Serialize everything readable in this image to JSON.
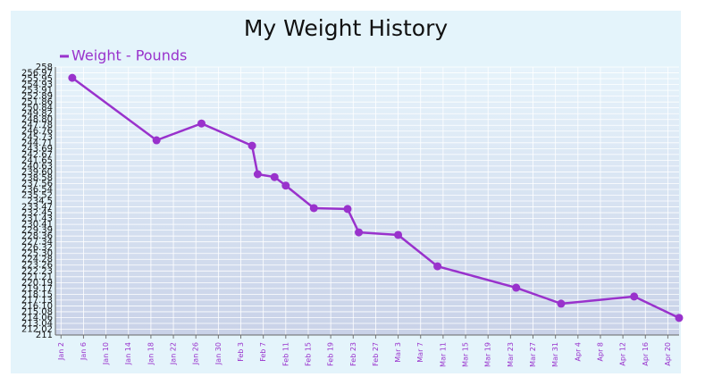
{
  "chart_data": {
    "type": "line",
    "title": "My Weight History",
    "x": [
      "Jan 4",
      "Jan 19",
      "Jan 27",
      "Feb 5",
      "Feb 6",
      "Feb 9",
      "Feb 11",
      "Feb 16",
      "Feb 22",
      "Feb 24",
      "Mar 3",
      "Mar 10",
      "Mar 24",
      "Apr 1",
      "Apr 14",
      "Apr 22"
    ],
    "series": [
      {
        "name": "Weight - Pounds",
        "color": "#9932cc",
        "values": [
          256.1,
          245.15,
          248.1,
          244.2,
          239.2,
          238.7,
          237.2,
          233.25,
          233.1,
          229.0,
          228.55,
          223.05,
          219.3,
          216.5,
          217.75,
          214.0
        ]
      }
    ],
    "xlim": [
      "Jan 1",
      "Apr 22"
    ],
    "xticks": [
      "Jan 2",
      "Jan 6",
      "Jan 10",
      "Jan 14",
      "Jan 18",
      "Jan 22",
      "Jan 26",
      "Jan 30",
      "Feb 3",
      "Feb 7",
      "Feb 11",
      "Feb 15",
      "Feb 19",
      "Feb 23",
      "Feb 27",
      "Mar 3",
      "Mar 7",
      "Mar 11",
      "Mar 15",
      "Mar 19",
      "Mar 23",
      "Mar 27",
      "Mar 31",
      "Apr 4",
      "Apr 8",
      "Apr 12",
      "Apr 16",
      "Apr 20"
    ],
    "ylim": [
      211,
      258
    ],
    "yticks": [
      258,
      256.97,
      255.95,
      254.93,
      253.91,
      252.89,
      251.86,
      250.84,
      249.82,
      {
        "value": 248.8,
        "label": "248.80"
      },
      247.78,
      246.76,
      245.73,
      244.71,
      243.69,
      242.67,
      241.65,
      240.63,
      {
        "value": 239.6,
        "label": "239.60"
      },
      238.58,
      237.56,
      236.54,
      235.52,
      234.5,
      233.47,
      232.45,
      231.43,
      230.41,
      229.39,
      228.36,
      227.34,
      226.32,
      {
        "value": 225.3,
        "label": "225.30"
      },
      224.28,
      223.26,
      222.23,
      221.21,
      220.19,
      219.17,
      218.15,
      217.13,
      {
        "value": 216.1,
        "label": "216.10"
      },
      215.08,
      214.06,
      213.04,
      212.02,
      211
    ],
    "grid": true
  }
}
